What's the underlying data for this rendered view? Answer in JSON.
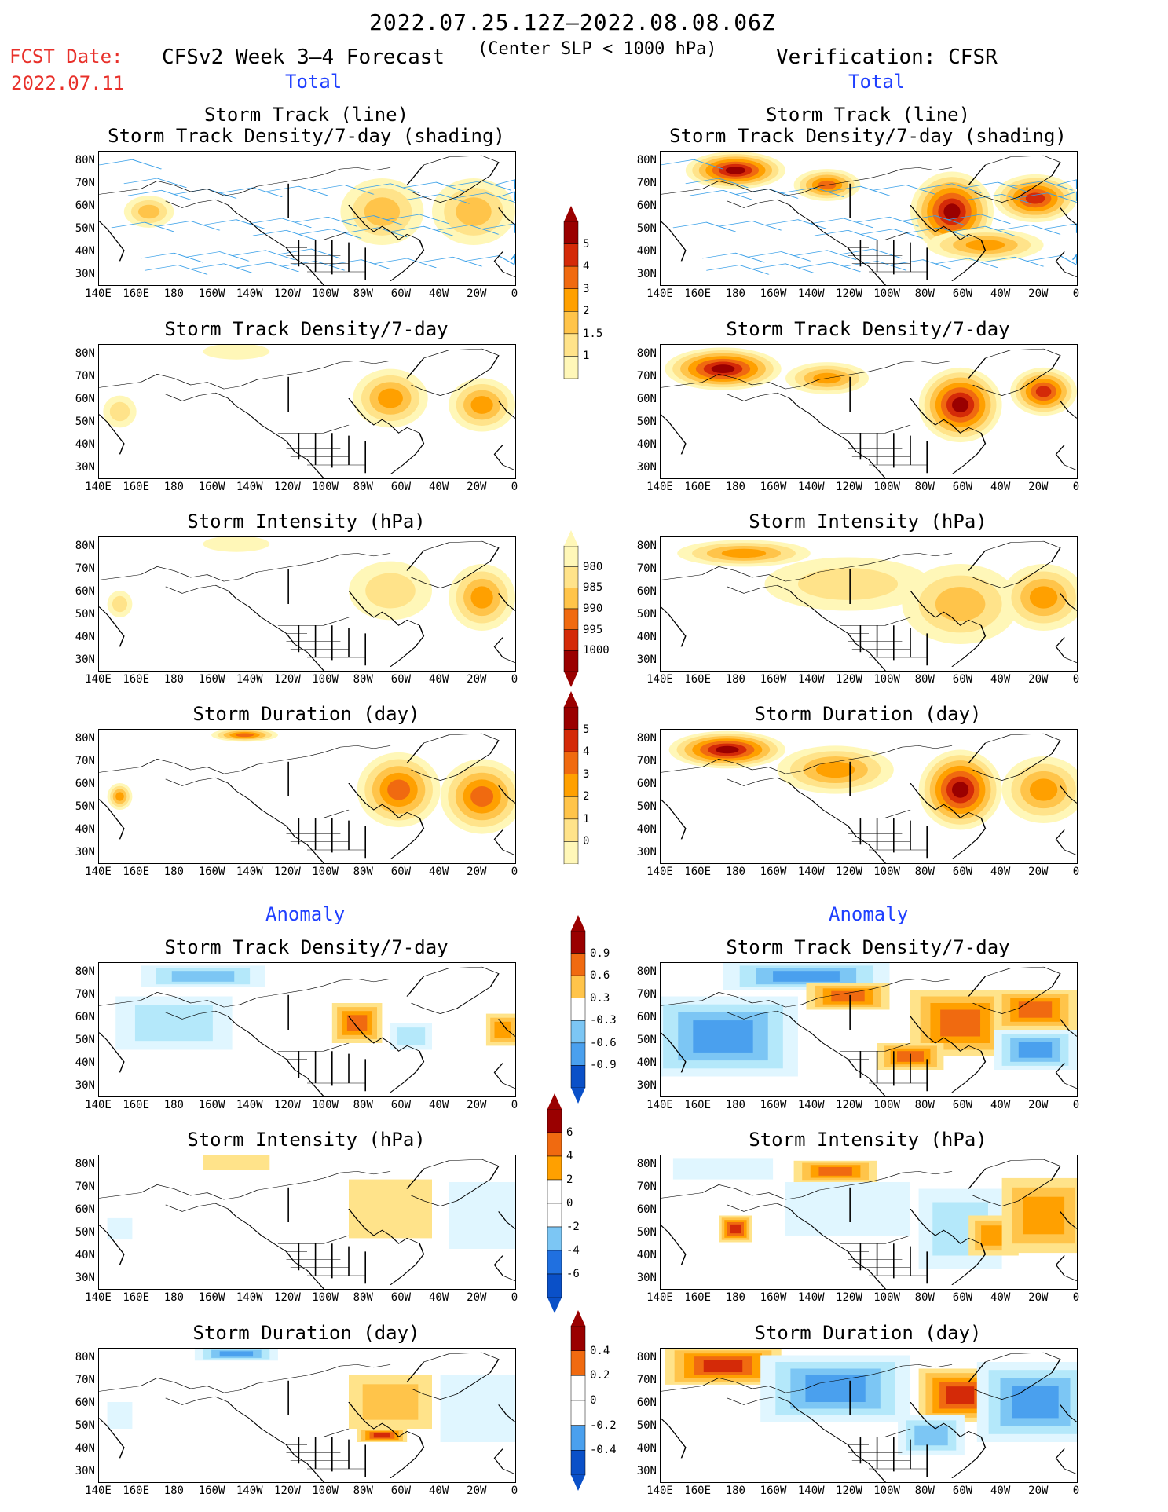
{
  "header": {
    "date_range": "2022.07.25.12Z–2022.08.08.06Z",
    "fcst_label": "FCST Date:",
    "fcst_date": "2022.07.11",
    "model_title": "CFSv2 Week 3–4 Forecast",
    "criterion": "(Center SLP < 1000 hPa)",
    "verification": "Verification: CFSR"
  },
  "sections": {
    "total_left": "Total",
    "total_right": "Total",
    "anomaly_left": "Anomaly",
    "anomaly_right": "Anomaly"
  },
  "panel_titles": {
    "track_line": "Storm Track (line)",
    "track_density_shading": "Storm Track Density/7-day (shading)",
    "track_density": "Storm Track Density/7-day",
    "intensity": "Storm Intensity (hPa)",
    "duration": "Storm Duration (day)"
  },
  "axes": {
    "lat_labels": [
      "80N",
      "70N",
      "60N",
      "50N",
      "40N",
      "30N"
    ],
    "lon_labels": [
      "140E",
      "160E",
      "180",
      "160W",
      "140W",
      "120W",
      "100W",
      "80W",
      "60W",
      "40W",
      "20W",
      "0"
    ]
  },
  "colorbars": {
    "density_total": [
      "1",
      "1.5",
      "2",
      "3",
      "4",
      "5"
    ],
    "intensity_total": [
      "1000",
      "995",
      "990",
      "985",
      "980"
    ],
    "duration_total": [
      "0",
      "1",
      "2",
      "3",
      "4",
      "5"
    ],
    "density_anom": [
      "-0.9",
      "-0.6",
      "-0.3",
      "0.3",
      "0.6",
      "0.9"
    ],
    "intensity_anom": [
      "-6",
      "-4",
      "-2",
      "0",
      "2",
      "4",
      "6"
    ],
    "duration_anom": [
      "-0.4",
      "-0.2",
      "0",
      "0.2",
      "0.4"
    ]
  },
  "colors": {
    "warm": [
      "#fff7b8",
      "#ffe38a",
      "#ffc44a",
      "#ffa000",
      "#f06a10",
      "#d42a08",
      "#9a0000"
    ],
    "cool": [
      "#e0f6ff",
      "#b4e8fa",
      "#7cc6f4",
      "#4aa0ee",
      "#2070e0",
      "#0a50c8"
    ],
    "track_line": "#3aa0e8",
    "text_red": "#e8302a",
    "text_blue": "#1f3fff"
  },
  "panels": [
    {
      "id": "fcst_track",
      "kind": "warm",
      "blobs": [
        [
          0.12,
          0.45,
          0.06,
          0.12,
          2
        ],
        [
          0.68,
          0.45,
          0.1,
          0.25,
          2
        ],
        [
          0.9,
          0.45,
          0.1,
          0.25,
          2
        ]
      ],
      "tracks": true
    },
    {
      "id": "obs_track",
      "kind": "warm",
      "blobs": [
        [
          0.18,
          0.14,
          0.12,
          0.14,
          6
        ],
        [
          0.4,
          0.25,
          0.08,
          0.12,
          4
        ],
        [
          0.7,
          0.45,
          0.1,
          0.3,
          6
        ],
        [
          0.9,
          0.35,
          0.1,
          0.18,
          5
        ],
        [
          0.78,
          0.7,
          0.14,
          0.12,
          3
        ]
      ],
      "tracks": true
    },
    {
      "id": "fcst_density",
      "kind": "warm",
      "blobs": [
        [
          0.05,
          0.5,
          0.04,
          0.12,
          1
        ],
        [
          0.33,
          0.05,
          0.08,
          0.06,
          0
        ],
        [
          0.7,
          0.4,
          0.09,
          0.22,
          3
        ],
        [
          0.92,
          0.45,
          0.08,
          0.2,
          3
        ]
      ],
      "tracks": false
    },
    {
      "id": "obs_density",
      "kind": "warm",
      "blobs": [
        [
          0.15,
          0.18,
          0.14,
          0.16,
          6
        ],
        [
          0.4,
          0.25,
          0.1,
          0.12,
          3
        ],
        [
          0.72,
          0.45,
          0.1,
          0.28,
          6
        ],
        [
          0.92,
          0.35,
          0.08,
          0.18,
          5
        ]
      ],
      "tracks": false
    },
    {
      "id": "fcst_intensity",
      "kind": "warm",
      "blobs": [
        [
          0.05,
          0.5,
          0.03,
          0.1,
          1
        ],
        [
          0.33,
          0.05,
          0.08,
          0.06,
          0
        ],
        [
          0.7,
          0.4,
          0.1,
          0.22,
          1
        ],
        [
          0.92,
          0.45,
          0.08,
          0.25,
          3
        ]
      ],
      "tracks": false
    },
    {
      "id": "obs_intensity",
      "kind": "warm",
      "blobs": [
        [
          0.2,
          0.12,
          0.16,
          0.1,
          3
        ],
        [
          0.45,
          0.35,
          0.2,
          0.2,
          1
        ],
        [
          0.72,
          0.5,
          0.14,
          0.3,
          2
        ],
        [
          0.92,
          0.45,
          0.1,
          0.25,
          3
        ]
      ],
      "tracks": false
    },
    {
      "id": "fcst_duration",
      "kind": "warm",
      "blobs": [
        [
          0.05,
          0.5,
          0.03,
          0.1,
          3
        ],
        [
          0.35,
          0.04,
          0.08,
          0.05,
          4
        ],
        [
          0.72,
          0.45,
          0.1,
          0.28,
          4
        ],
        [
          0.92,
          0.5,
          0.1,
          0.28,
          4
        ]
      ],
      "tracks": false
    },
    {
      "id": "obs_duration",
      "kind": "warm",
      "blobs": [
        [
          0.16,
          0.15,
          0.14,
          0.14,
          6
        ],
        [
          0.42,
          0.3,
          0.14,
          0.18,
          3
        ],
        [
          0.72,
          0.45,
          0.1,
          0.3,
          6
        ],
        [
          0.92,
          0.45,
          0.1,
          0.25,
          3
        ]
      ],
      "tracks": false
    },
    {
      "id": "fcst_density_anom",
      "kind": "anom",
      "blobs": [
        [
          0.18,
          0.45,
          0.14,
          0.2,
          -2
        ],
        [
          0.25,
          0.1,
          0.15,
          0.08,
          -3
        ],
        [
          0.62,
          0.45,
          0.06,
          0.15,
          4
        ],
        [
          0.75,
          0.55,
          0.05,
          0.1,
          -2
        ],
        [
          0.97,
          0.5,
          0.04,
          0.12,
          3
        ]
      ],
      "tracks": false
    },
    {
      "id": "obs_density_anom",
      "kind": "anom",
      "blobs": [
        [
          0.15,
          0.55,
          0.18,
          0.3,
          -4
        ],
        [
          0.35,
          0.1,
          0.2,
          0.1,
          -4
        ],
        [
          0.45,
          0.25,
          0.1,
          0.1,
          4
        ],
        [
          0.72,
          0.45,
          0.12,
          0.25,
          4
        ],
        [
          0.9,
          0.35,
          0.1,
          0.15,
          4
        ],
        [
          0.9,
          0.65,
          0.1,
          0.15,
          -4
        ],
        [
          0.6,
          0.7,
          0.08,
          0.1,
          4
        ]
      ],
      "tracks": false
    },
    {
      "id": "fcst_intensity_anom",
      "kind": "anom",
      "blobs": [
        [
          0.33,
          0.05,
          0.08,
          0.06,
          1
        ],
        [
          0.7,
          0.4,
          0.1,
          0.22,
          1
        ],
        [
          0.92,
          0.45,
          0.08,
          0.25,
          -1
        ],
        [
          0.05,
          0.55,
          0.03,
          0.08,
          -1
        ]
      ],
      "tracks": false
    },
    {
      "id": "obs_intensity_anom",
      "kind": "anom",
      "blobs": [
        [
          0.15,
          0.1,
          0.12,
          0.08,
          -1
        ],
        [
          0.42,
          0.12,
          0.1,
          0.08,
          4
        ],
        [
          0.18,
          0.55,
          0.04,
          0.1,
          5
        ],
        [
          0.45,
          0.4,
          0.15,
          0.2,
          -1
        ],
        [
          0.72,
          0.55,
          0.1,
          0.3,
          -2
        ],
        [
          0.8,
          0.6,
          0.06,
          0.15,
          3
        ],
        [
          0.92,
          0.45,
          0.1,
          0.28,
          3
        ]
      ],
      "tracks": false
    },
    {
      "id": "fcst_duration_anom",
      "kind": "anom",
      "blobs": [
        [
          0.33,
          0.04,
          0.1,
          0.05,
          -4
        ],
        [
          0.7,
          0.4,
          0.1,
          0.2,
          2
        ],
        [
          0.68,
          0.65,
          0.06,
          0.05,
          5
        ],
        [
          0.92,
          0.45,
          0.1,
          0.25,
          -1
        ],
        [
          0.05,
          0.5,
          0.03,
          0.1,
          -1
        ]
      ],
      "tracks": false
    },
    {
      "id": "obs_duration_anom",
      "kind": "anom",
      "blobs": [
        [
          0.15,
          0.13,
          0.14,
          0.14,
          5
        ],
        [
          0.42,
          0.3,
          0.18,
          0.25,
          -4
        ],
        [
          0.72,
          0.35,
          0.1,
          0.2,
          5
        ],
        [
          0.9,
          0.4,
          0.14,
          0.3,
          -4
        ],
        [
          0.65,
          0.65,
          0.08,
          0.15,
          -3
        ]
      ],
      "tracks": false
    }
  ]
}
